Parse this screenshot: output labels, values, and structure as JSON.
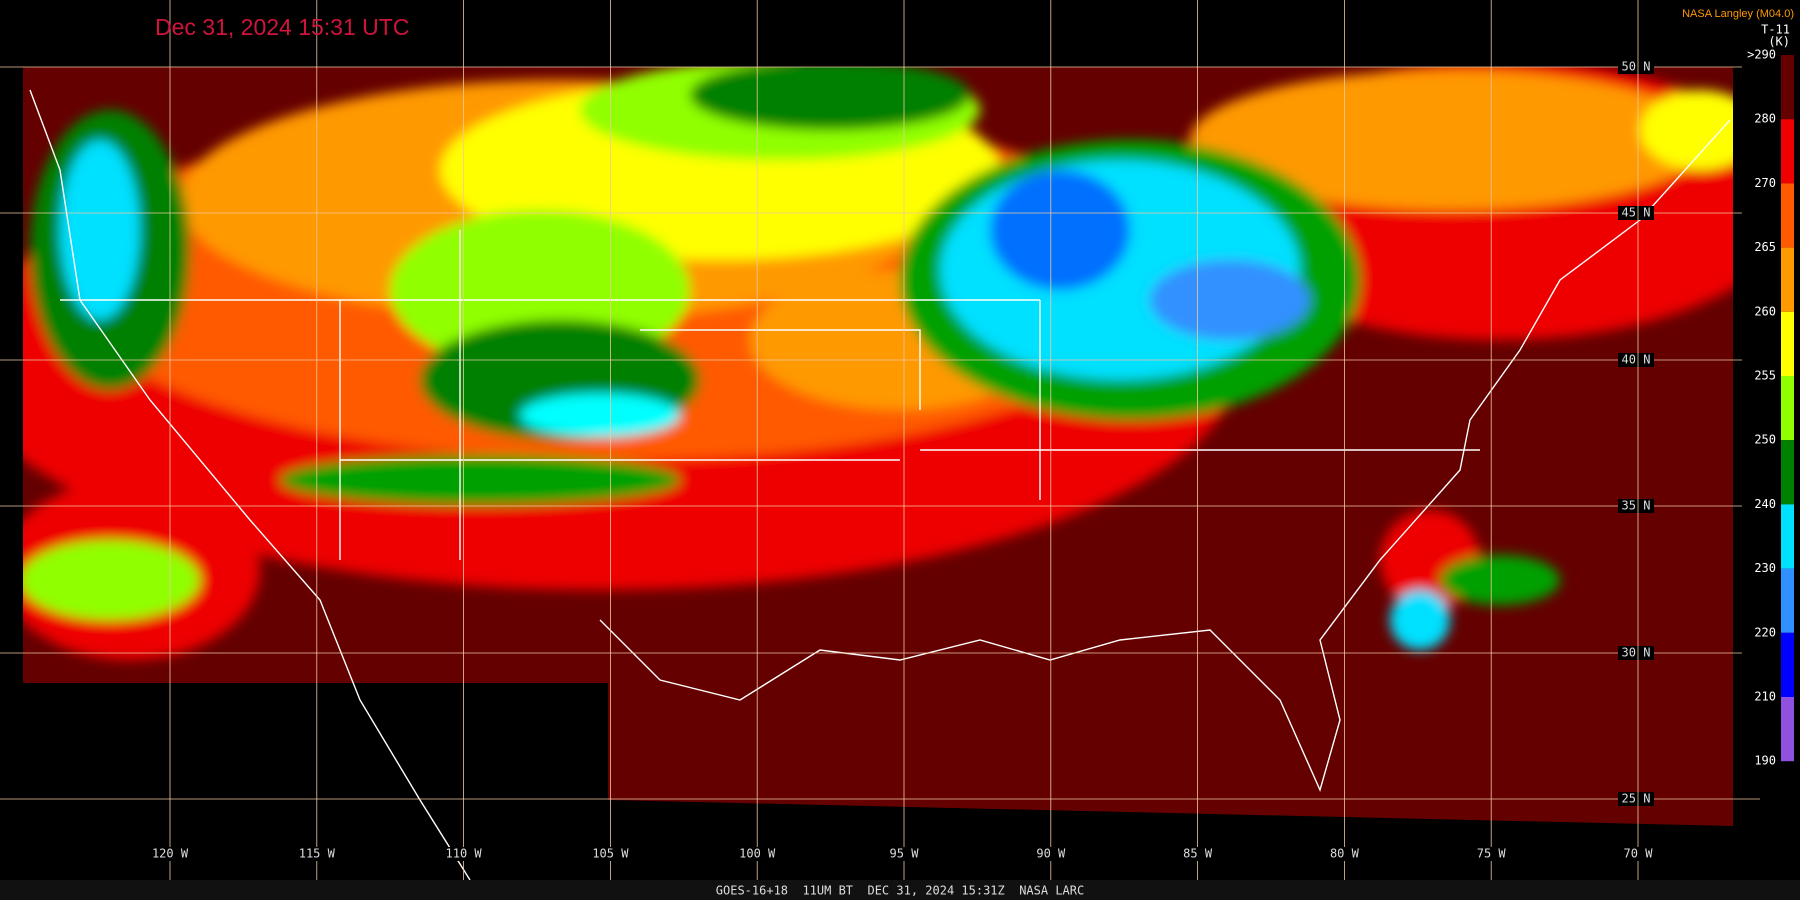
{
  "header": {
    "timestamp": "Dec 31, 2024 15:31 UTC",
    "credit": "NASA Langley (M04.0)"
  },
  "colorbar": {
    "title": "T-11",
    "unit": "(K)",
    "labels": [
      ">290",
      "280",
      "270",
      "265",
      "260",
      "255",
      "250",
      "240",
      "230",
      "220",
      "210",
      "190"
    ]
  },
  "latitudes": [
    "50 N",
    "45 N",
    "40 N",
    "35 N",
    "30 N",
    "25 N"
  ],
  "longitudes": [
    "120 W",
    "115 W",
    "110 W",
    "105 W",
    "100 W",
    "95 W",
    "90 W",
    "85 W",
    "80 W",
    "75 W",
    "70 W"
  ],
  "footer": "GOES-16+18  11UM BT  DEC 31, 2024 15:31Z  NASA LARC"
}
